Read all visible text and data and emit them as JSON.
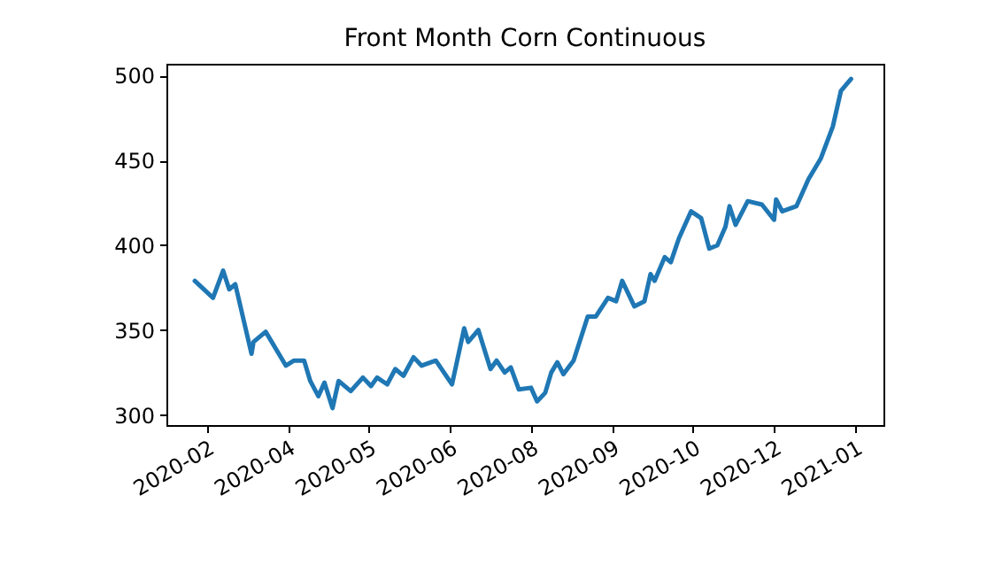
{
  "chart_data": {
    "type": "line",
    "title": "Front Month Corn Continuous",
    "x": [
      "2020-02-21",
      "2020-03-01",
      "2020-03-06",
      "2020-03-09",
      "2020-03-12",
      "2020-03-20",
      "2020-03-21",
      "2020-03-27",
      "2020-04-06",
      "2020-04-10",
      "2020-04-15",
      "2020-04-18",
      "2020-04-22",
      "2020-04-25",
      "2020-04-29",
      "2020-05-02",
      "2020-05-08",
      "2020-05-14",
      "2020-05-18",
      "2020-05-21",
      "2020-05-26",
      "2020-05-30",
      "2020-06-03",
      "2020-06-08",
      "2020-06-12",
      "2020-06-19",
      "2020-06-27",
      "2020-07-03",
      "2020-07-05",
      "2020-07-10",
      "2020-07-16",
      "2020-07-19",
      "2020-07-23",
      "2020-07-26",
      "2020-07-30",
      "2020-08-05",
      "2020-08-08",
      "2020-08-12",
      "2020-08-15",
      "2020-08-18",
      "2020-08-21",
      "2020-08-26",
      "2020-09-02",
      "2020-09-06",
      "2020-09-12",
      "2020-09-16",
      "2020-09-19",
      "2020-09-25",
      "2020-09-30",
      "2020-10-03",
      "2020-10-05",
      "2020-10-10",
      "2020-10-13",
      "2020-10-17",
      "2020-10-23",
      "2020-10-28",
      "2020-11-01",
      "2020-11-05",
      "2020-11-09",
      "2020-11-11",
      "2020-11-14",
      "2020-11-20",
      "2020-11-27",
      "2020-12-03",
      "2020-12-04",
      "2020-12-07",
      "2020-12-14",
      "2020-12-20",
      "2020-12-26",
      "2021-01-01",
      "2021-01-05",
      "2021-01-10"
    ],
    "series": [
      {
        "color": "#1f77b4",
        "values": [
          379,
          369,
          385,
          374,
          377,
          336,
          343,
          349,
          329,
          332,
          332,
          320,
          311,
          319,
          304,
          320,
          314,
          322,
          317,
          322,
          318,
          327,
          323,
          334,
          329,
          332,
          318,
          351,
          343,
          350,
          327,
          332,
          325,
          328,
          315,
          316,
          308,
          313,
          325,
          331,
          324,
          332,
          358,
          358,
          369,
          367,
          379,
          364,
          367,
          383,
          379,
          393,
          390,
          404,
          420,
          416,
          398,
          400,
          411,
          423,
          412,
          426,
          424,
          415,
          427,
          420,
          423,
          439,
          451,
          470,
          491,
          498
        ]
      }
    ],
    "xlim": [
      "2020-02-07",
      "2021-01-26"
    ],
    "xticks": [
      {
        "value": "2020-02-27",
        "label": "2020-02"
      },
      {
        "value": "2020-04-07",
        "label": "2020-04"
      },
      {
        "value": "2020-05-17",
        "label": "2020-05"
      },
      {
        "value": "2020-06-26",
        "label": "2020-06"
      },
      {
        "value": "2020-08-05",
        "label": "2020-08"
      },
      {
        "value": "2020-09-14",
        "label": "2020-09"
      },
      {
        "value": "2020-10-24",
        "label": "2020-10"
      },
      {
        "value": "2020-12-03",
        "label": "2020-12"
      },
      {
        "value": "2021-01-12",
        "label": "2021-01"
      }
    ],
    "ylim": [
      294,
      507
    ],
    "yticks": [
      300,
      350,
      400,
      450,
      500
    ],
    "grid": false,
    "line_style": "solid"
  }
}
